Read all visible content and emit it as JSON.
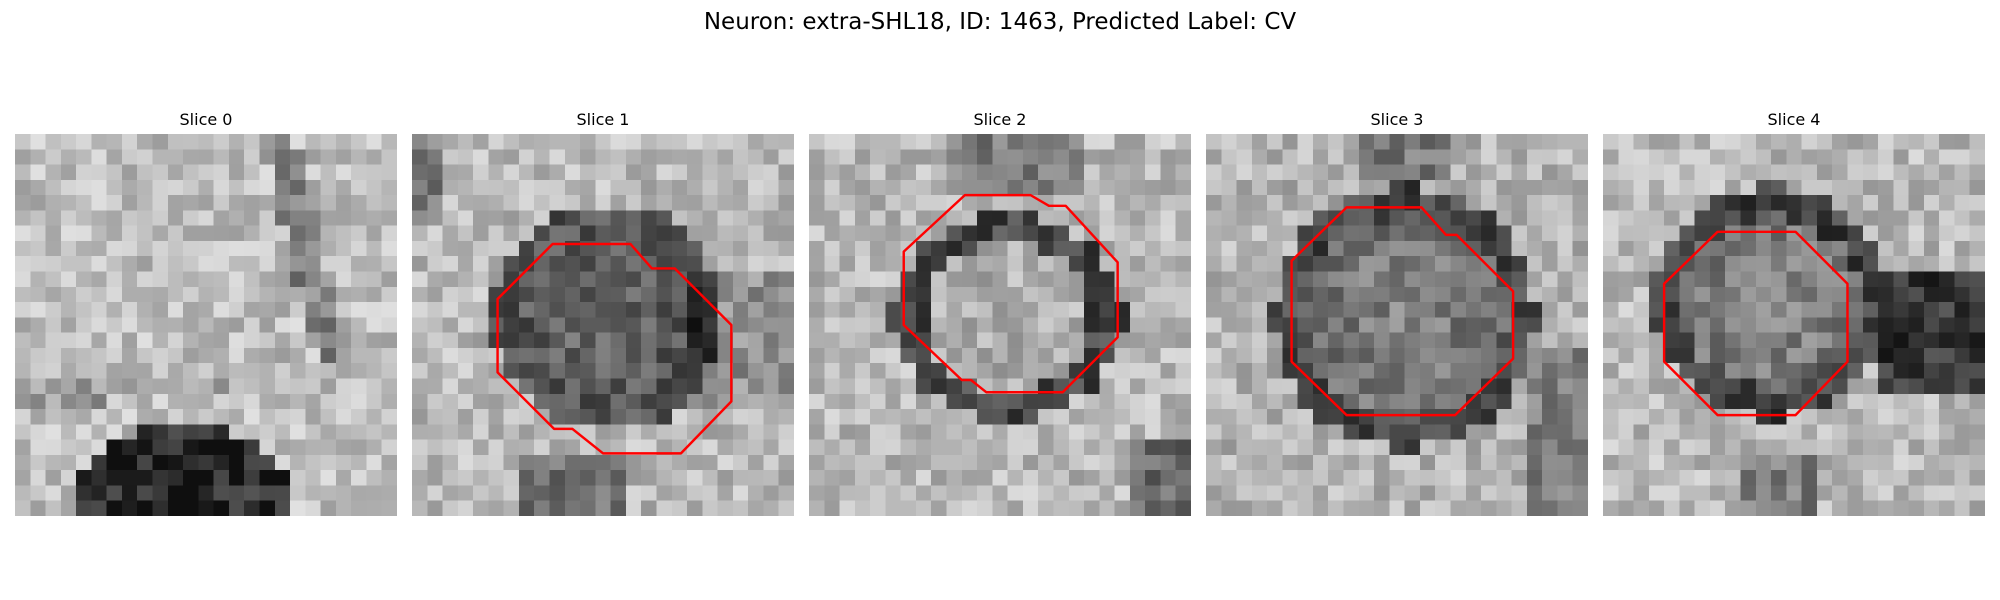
{
  "figure": {
    "suptitle": "Neuron: extra-SHL18, ID: 1463, Predicted Label: CV"
  },
  "colors": {
    "contour": "#ff0000"
  },
  "panels": [
    {
      "title": "Slice 0",
      "has_contour": false
    },
    {
      "title": "Slice 1",
      "has_contour": true
    },
    {
      "title": "Slice 2",
      "has_contour": true
    },
    {
      "title": "Slice 3",
      "has_contour": true
    },
    {
      "title": "Slice 4",
      "has_contour": true
    }
  ]
}
